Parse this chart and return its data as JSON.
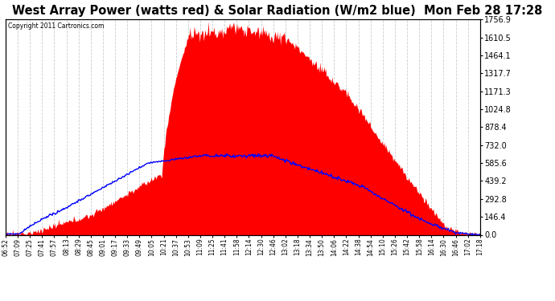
{
  "title": "West Array Power (watts red) & Solar Radiation (W/m2 blue)  Mon Feb 28 17:28",
  "copyright_text": "Copyright 2011 Cartronics.com",
  "y_right_ticks": [
    0.0,
    146.4,
    292.8,
    439.2,
    585.6,
    732.0,
    878.4,
    1024.8,
    1171.3,
    1317.7,
    1464.1,
    1610.5,
    1756.9
  ],
  "y_max": 1756.9,
  "background_color": "#ffffff",
  "plot_bg_color": "#ffffff",
  "grid_color": "#cccccc",
  "fill_color": "#ff0000",
  "line_color": "#0000ff",
  "title_fontsize": 10.5,
  "x_labels": [
    "06:52",
    "07:09",
    "07:25",
    "07:41",
    "07:57",
    "08:13",
    "08:29",
    "08:45",
    "09:01",
    "09:17",
    "09:33",
    "09:49",
    "10:05",
    "10:21",
    "10:37",
    "10:53",
    "11:09",
    "11:25",
    "11:41",
    "11:58",
    "12:14",
    "12:30",
    "12:46",
    "13:02",
    "13:18",
    "13:34",
    "13:50",
    "14:06",
    "14:22",
    "14:38",
    "14:54",
    "15:10",
    "15:26",
    "15:42",
    "15:58",
    "16:14",
    "16:30",
    "16:46",
    "17:02",
    "17:18"
  ],
  "n_points": 600
}
